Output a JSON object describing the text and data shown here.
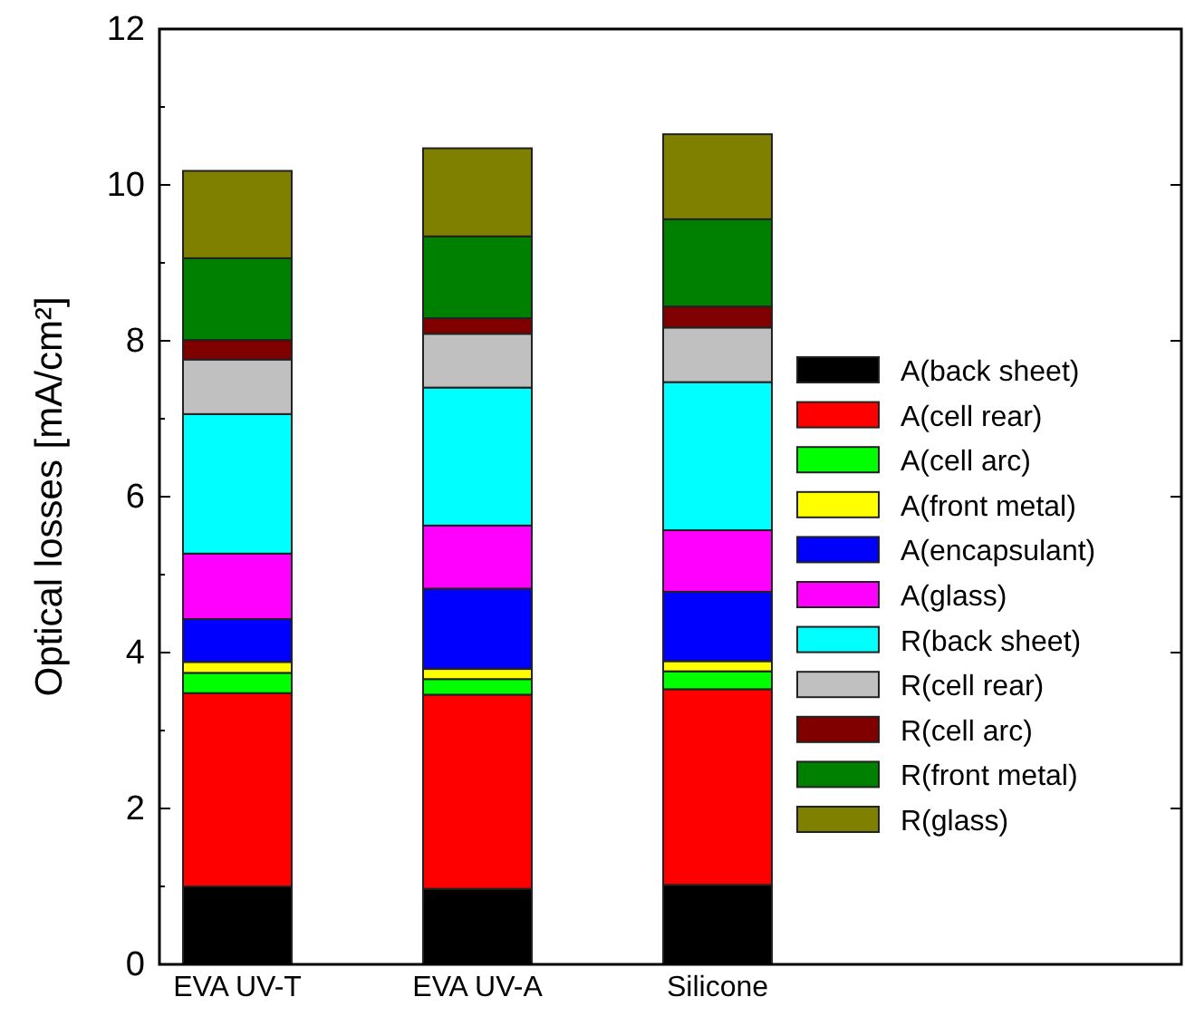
{
  "chart_data": {
    "type": "bar",
    "stacked": true,
    "ylabel": "Optical losses [mA/cm²]",
    "categories": [
      "EVA UV-T",
      "EVA UV-A",
      "Silicone"
    ],
    "ylim": [
      0,
      12
    ],
    "yticks": [
      0,
      2,
      4,
      6,
      8,
      10,
      12
    ],
    "grid": false,
    "legend": "right",
    "series": [
      {
        "name": "A(back sheet)",
        "color": "#000000",
        "values": [
          1.0,
          0.97,
          1.02
        ]
      },
      {
        "name": "A(cell rear)",
        "color": "#ff0000",
        "values": [
          2.48,
          2.49,
          2.51
        ]
      },
      {
        "name": "A(cell arc)",
        "color": "#00ff00",
        "values": [
          0.26,
          0.2,
          0.23
        ]
      },
      {
        "name": "A(front metal)",
        "color": "#ffff00",
        "values": [
          0.14,
          0.13,
          0.13
        ]
      },
      {
        "name": "A(encapsulant)",
        "color": "#0000ff",
        "values": [
          0.55,
          1.03,
          0.89
        ]
      },
      {
        "name": "A(glass)",
        "color": "#ff00ff",
        "values": [
          0.84,
          0.81,
          0.79
        ]
      },
      {
        "name": "R(back sheet)",
        "color": "#00ffff",
        "values": [
          1.79,
          1.77,
          1.9
        ]
      },
      {
        "name": "R(cell rear)",
        "color": "#c0c0c0",
        "values": [
          0.7,
          0.69,
          0.7
        ]
      },
      {
        "name": "R(cell arc)",
        "color": "#800000",
        "values": [
          0.25,
          0.2,
          0.27
        ]
      },
      {
        "name": "R(front metal)",
        "color": "#008000",
        "values": [
          1.05,
          1.05,
          1.12
        ]
      },
      {
        "name": "R(glass)",
        "color": "#808000",
        "values": [
          1.12,
          1.13,
          1.09
        ]
      }
    ]
  }
}
